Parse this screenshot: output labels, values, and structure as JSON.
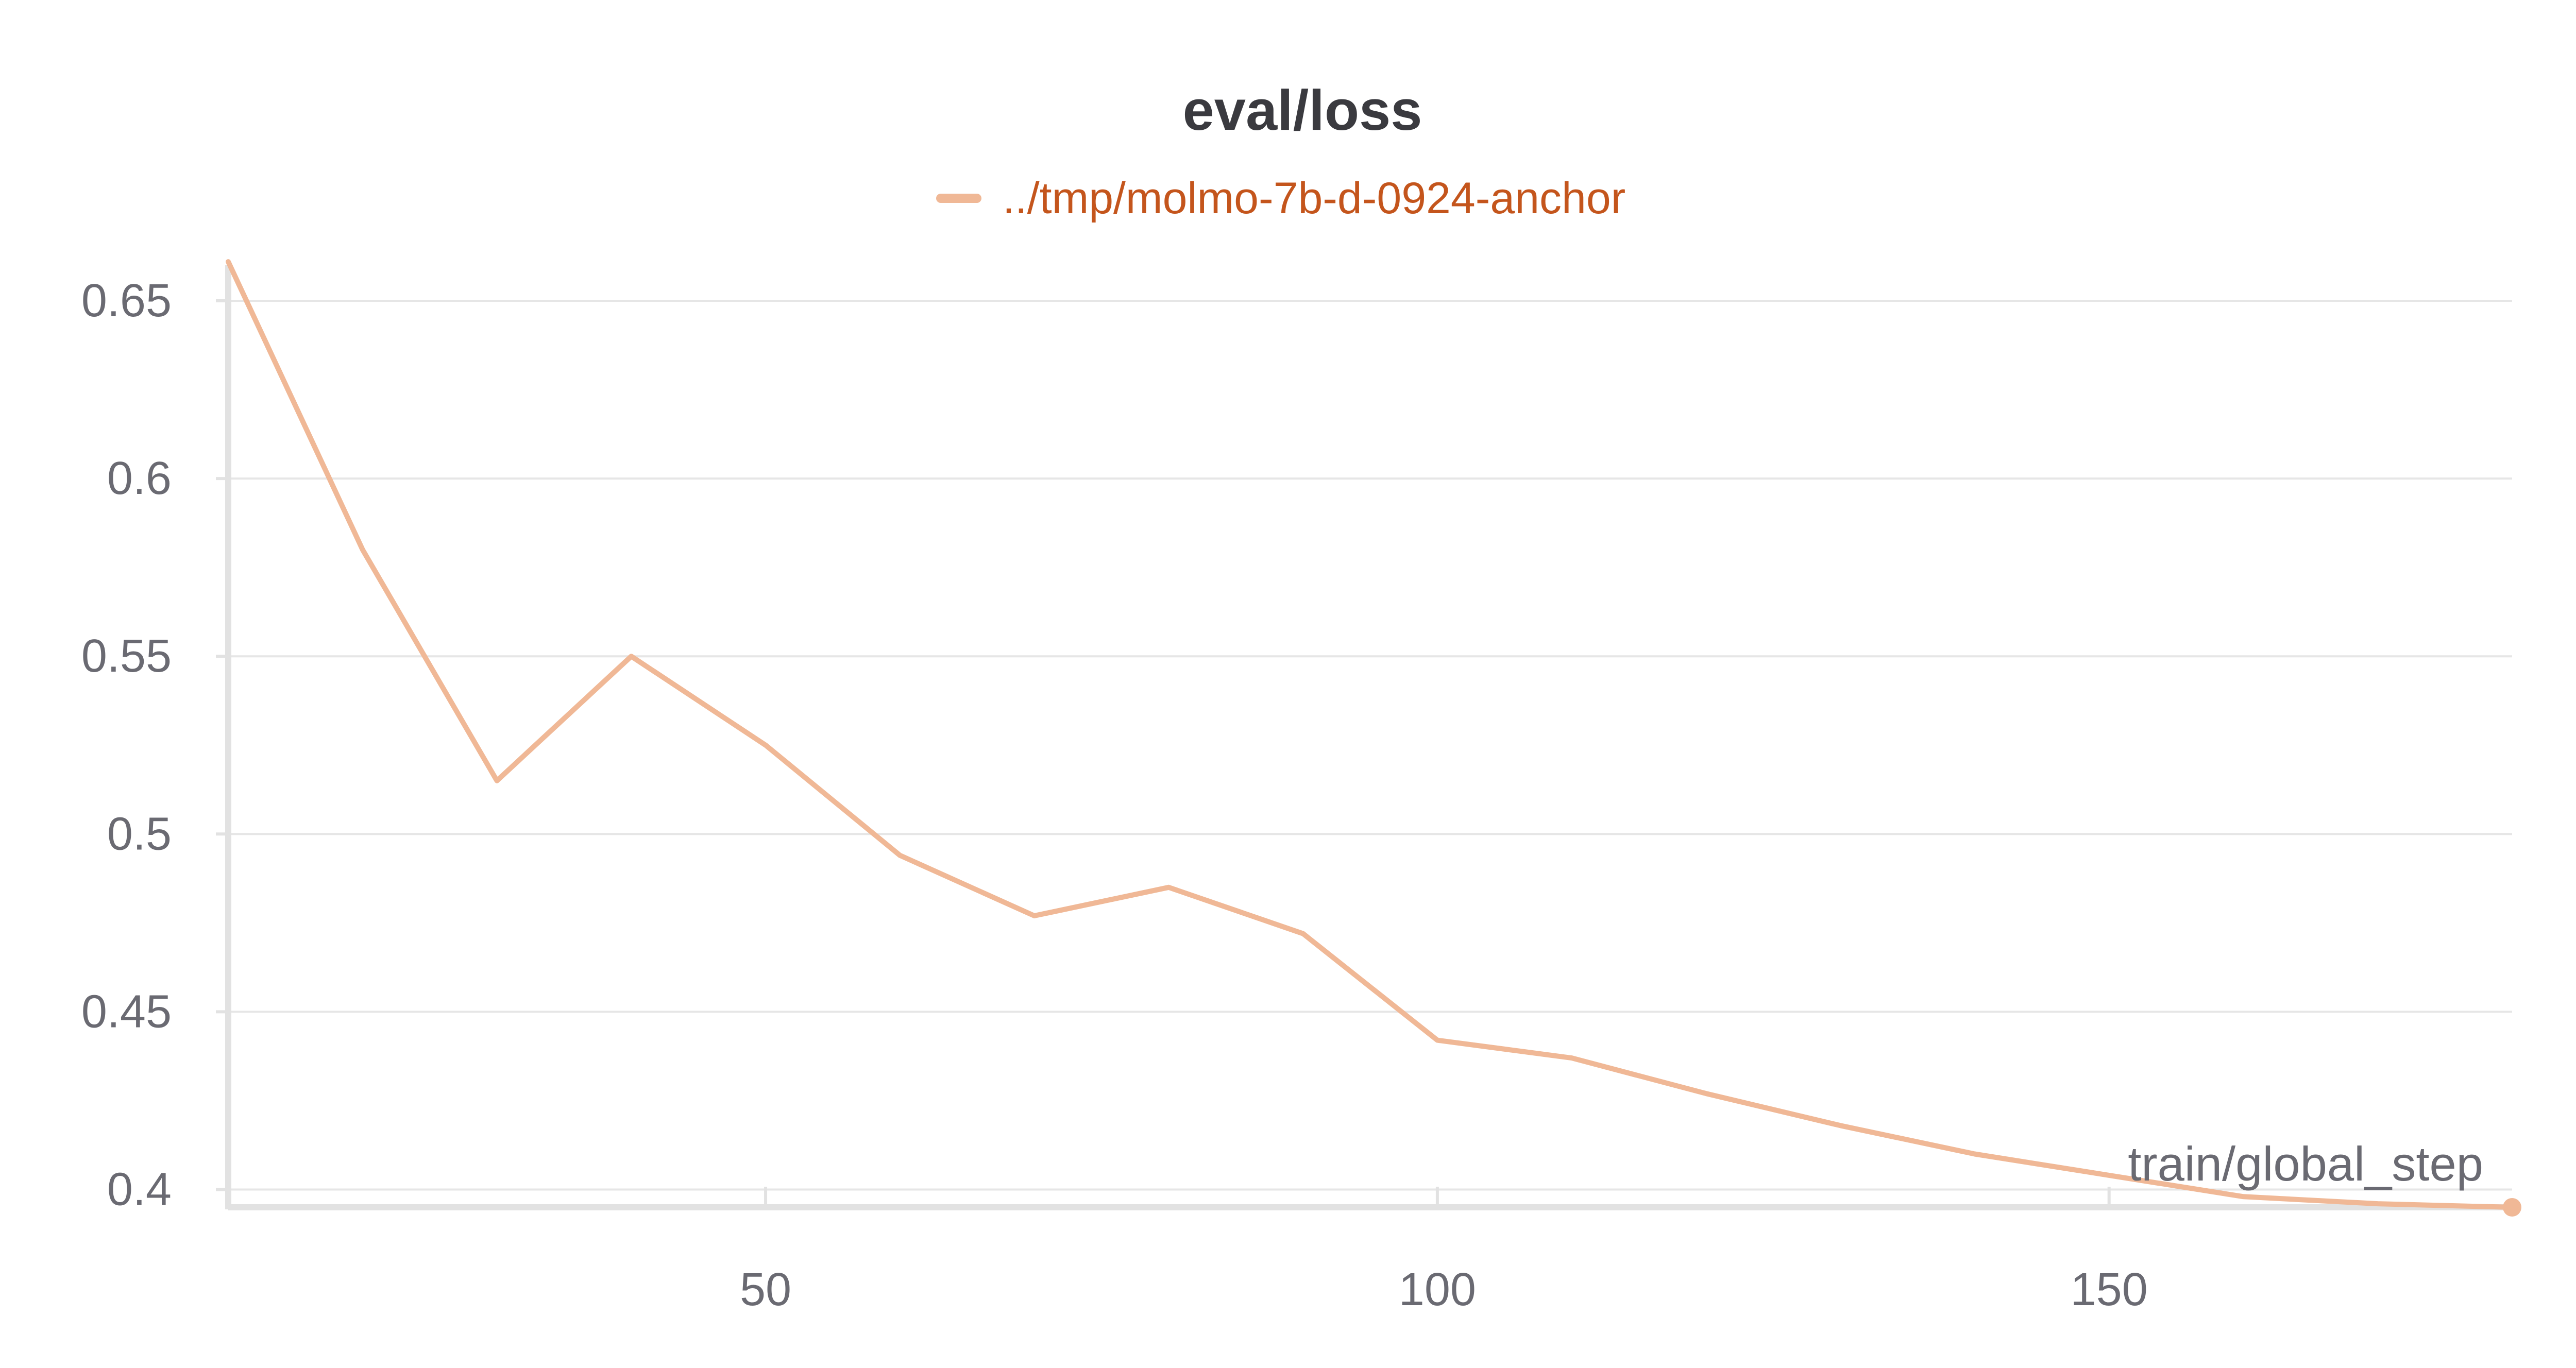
{
  "chart_data": {
    "type": "line",
    "title": "eval/loss",
    "xlabel": "train/global_step",
    "ylabel": "",
    "xlim": [
      10,
      180
    ],
    "ylim": [
      0.395,
      0.66
    ],
    "xticks": [
      50,
      100,
      150
    ],
    "xtick_labels": [
      "50",
      "100",
      "150"
    ],
    "yticks": [
      0.4,
      0.45,
      0.5,
      0.55,
      0.6,
      0.65
    ],
    "ytick_labels": [
      "0.4",
      "0.45",
      "0.5",
      "0.55",
      "0.6",
      "0.65"
    ],
    "grid": true,
    "legend_position": "top-center",
    "series": [
      {
        "name": "../tmp/molmo-7b-d-0924-anchor",
        "color": "#f0b896",
        "x": [
          10,
          20,
          30,
          40,
          50,
          60,
          70,
          80,
          90,
          100,
          110,
          120,
          130,
          140,
          150,
          160,
          170,
          180
        ],
        "y": [
          0.661,
          0.58,
          0.515,
          0.55,
          0.525,
          0.494,
          0.477,
          0.485,
          0.472,
          0.442,
          0.437,
          0.427,
          0.418,
          0.41,
          0.404,
          0.398,
          0.396,
          0.395
        ]
      }
    ]
  }
}
